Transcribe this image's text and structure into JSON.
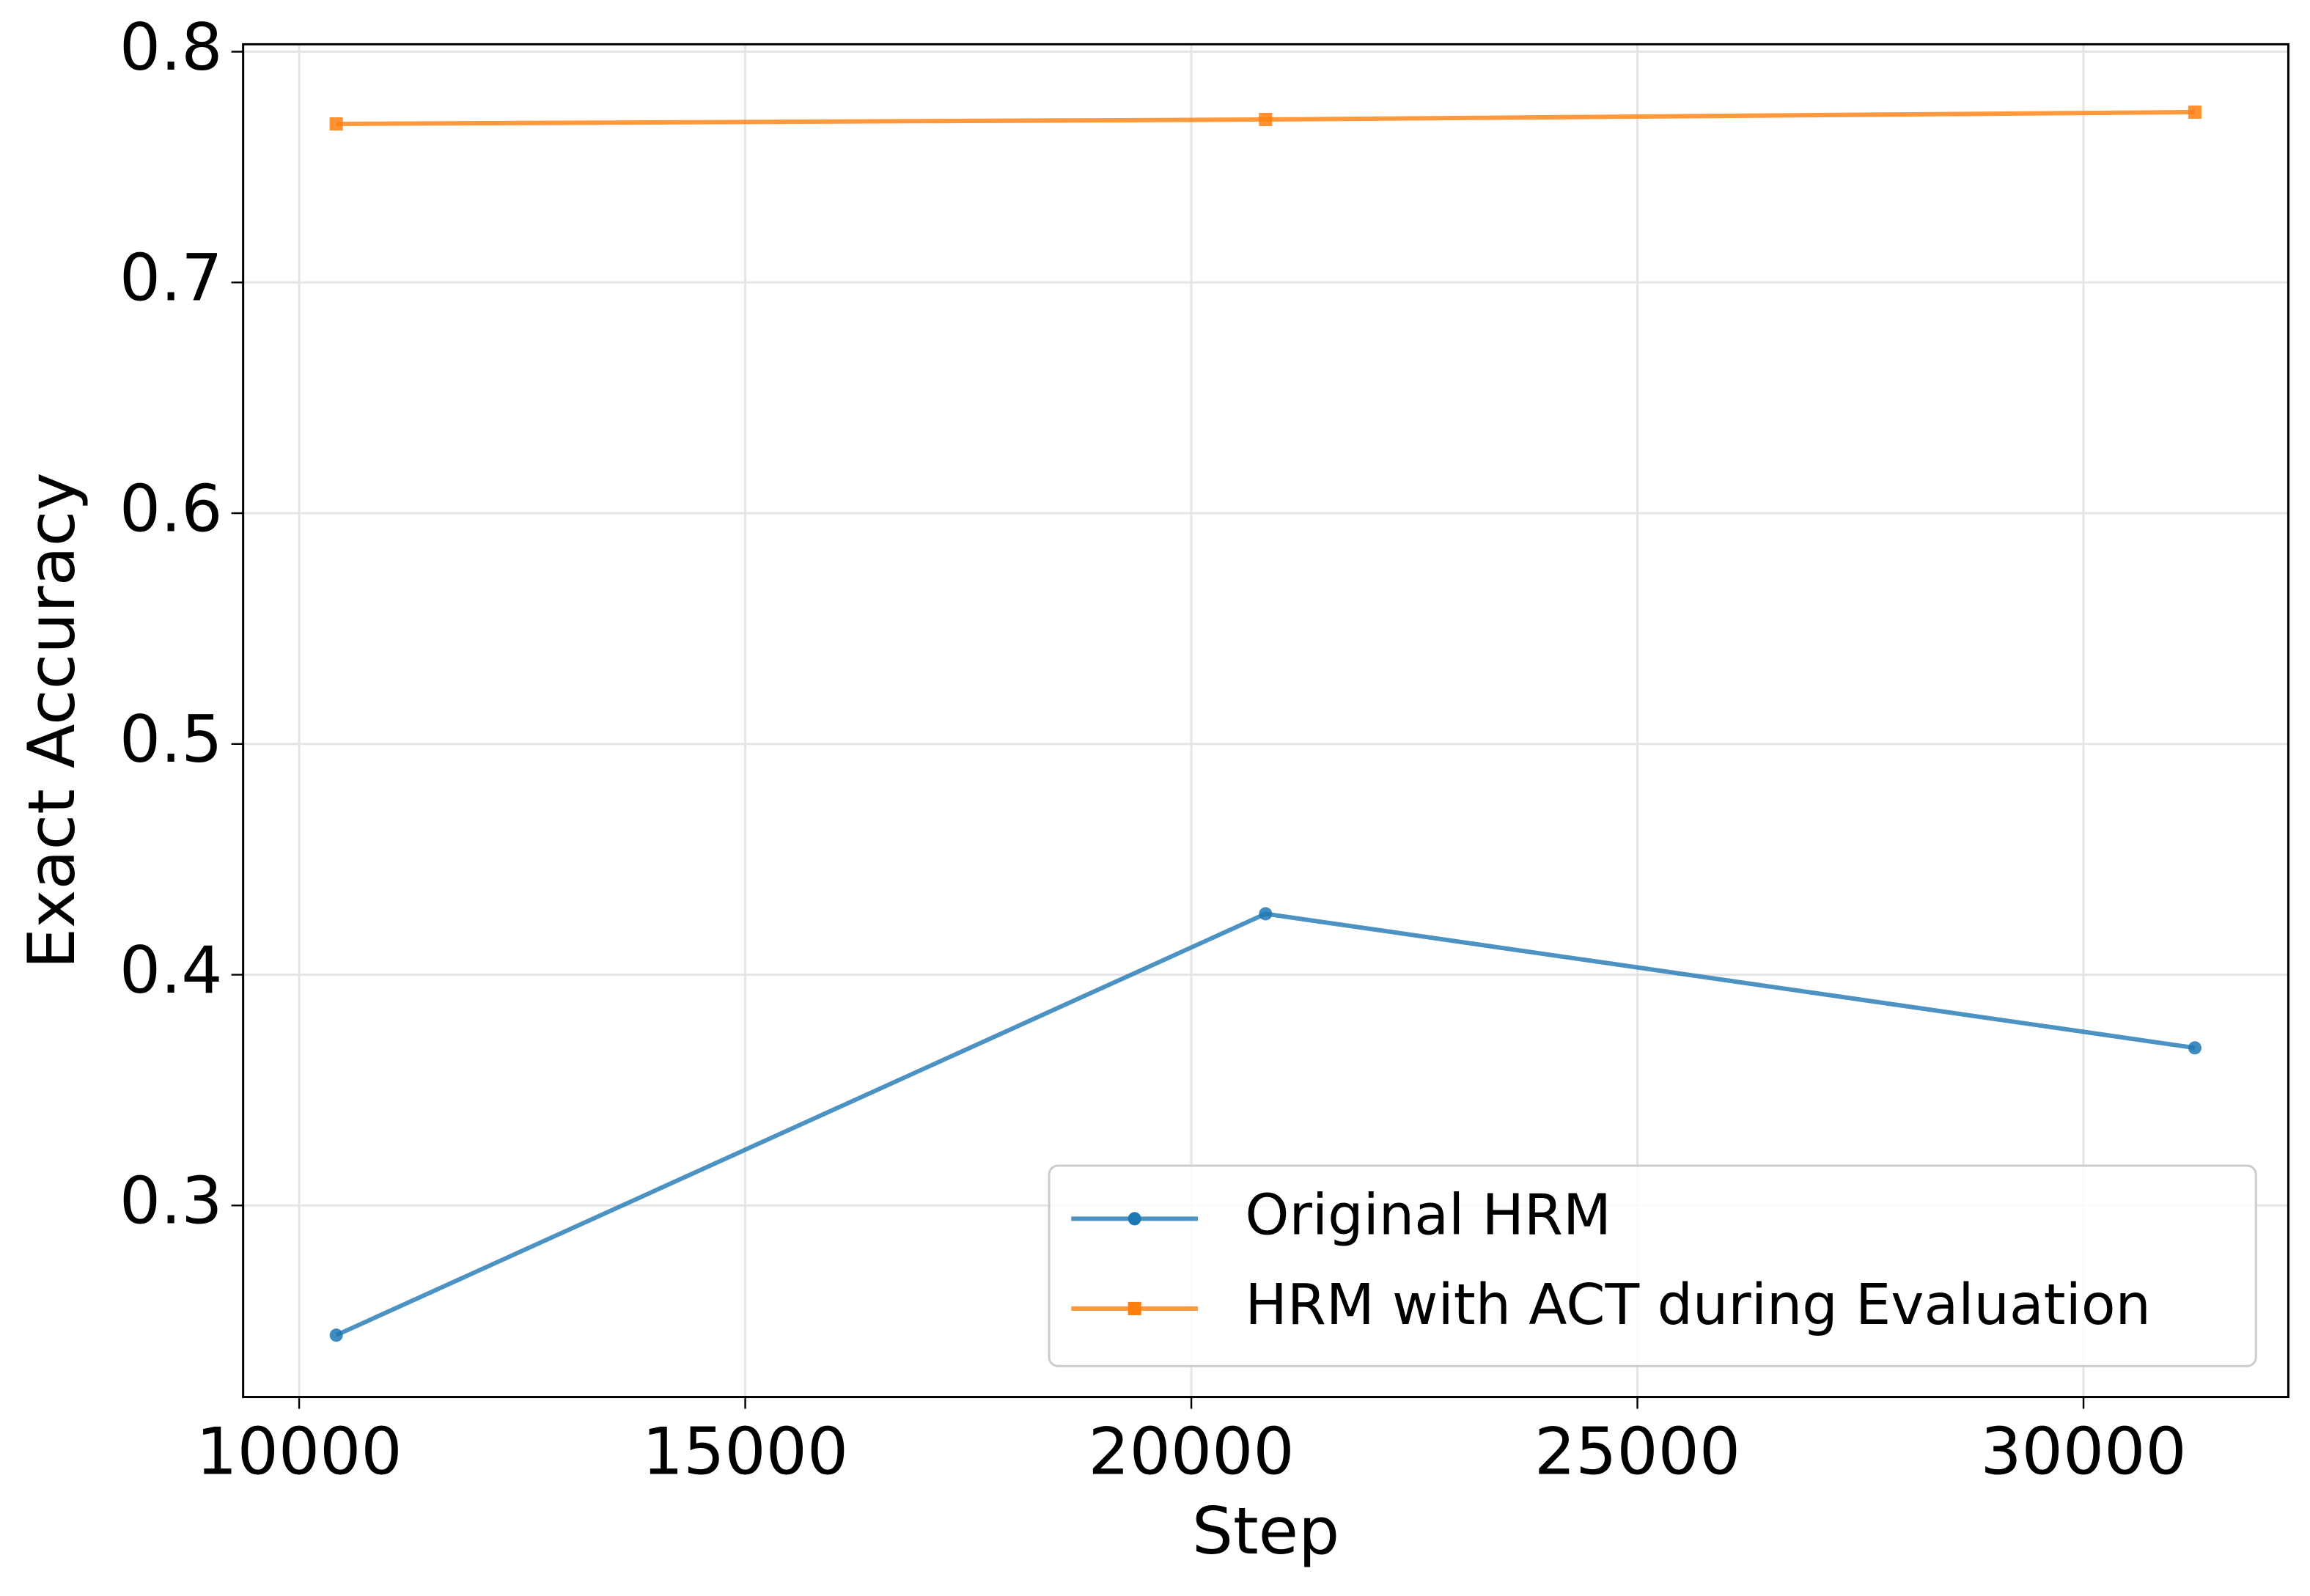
{
  "chart_data": {
    "type": "line",
    "x_label": "Step",
    "y_label": "Exact Accuracy",
    "xlim": [
      9372,
      32296
    ],
    "ylim": [
      0.217,
      0.8032
    ],
    "xticks": [
      10000,
      15000,
      20000,
      25000,
      30000
    ],
    "yticks": [
      0.3,
      0.4,
      0.5,
      0.6,
      0.7,
      0.8
    ],
    "grid": true,
    "legend_position": "lower-right",
    "x": [
      10416,
      20832,
      31248
    ],
    "series": [
      {
        "name": "Original HRM",
        "color": "#1f77b4",
        "marker": "circle",
        "values": [
          0.2438,
          0.4264,
          0.3683
        ]
      },
      {
        "name": "HRM with ACT during Evaluation",
        "color": "#ff7f0e",
        "marker": "square",
        "values": [
          0.7687,
          0.7706,
          0.7738
        ]
      }
    ]
  }
}
